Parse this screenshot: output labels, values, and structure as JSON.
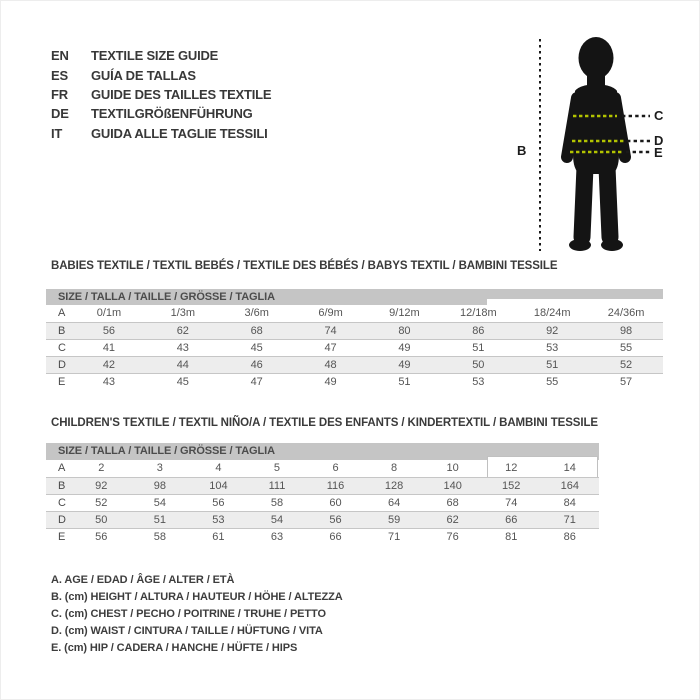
{
  "languages": [
    {
      "code": "EN",
      "title": "TEXTILE SIZE GUIDE"
    },
    {
      "code": "ES",
      "title": "GUÍA DE TALLAS"
    },
    {
      "code": "FR",
      "title": "GUIDE DES TAILLES TEXTILE"
    },
    {
      "code": "DE",
      "title": "TEXTILGRÖßENFÜHRUNG"
    },
    {
      "code": "IT",
      "title": "GUIDA ALLE TAGLIE TESSILI"
    }
  ],
  "figure": {
    "labels": {
      "height": "B",
      "chest": "C",
      "waist": "D",
      "hip": "E"
    }
  },
  "babies": {
    "title": "BABIES TEXTILE / TEXTIL BEBÉS / TEXTILE DES BÉBÉS / BABYS TEXTIL  / BAMBINI TESSILE",
    "size_header": "SIZE / TALLA / TAILLE / GRÖSSE / TAGLIA",
    "rows": [
      {
        "label": "A",
        "values": [
          "0/1m",
          "1/3m",
          "3/6m",
          "6/9m",
          "9/12m",
          "12/18m",
          "18/24m",
          "24/36m"
        ]
      },
      {
        "label": "B",
        "values": [
          "56",
          "62",
          "68",
          "74",
          "80",
          "86",
          "92",
          "98"
        ]
      },
      {
        "label": "C",
        "values": [
          "41",
          "43",
          "45",
          "47",
          "49",
          "51",
          "53",
          "55"
        ]
      },
      {
        "label": "D",
        "values": [
          "42",
          "44",
          "46",
          "48",
          "49",
          "50",
          "51",
          "52"
        ]
      },
      {
        "label": "E",
        "values": [
          "43",
          "45",
          "47",
          "49",
          "51",
          "53",
          "55",
          "57"
        ]
      }
    ]
  },
  "children": {
    "title": "CHILDREN'S TEXTILE / TEXTIL NIÑO/A / TEXTILE DES ENFANTS / KINDERTEXTIL / BAMBINI TESSILE",
    "size_header": "SIZE / TALLA / TAILLE / GRÖSSE / TAGLIA",
    "rows": [
      {
        "label": "A",
        "values": [
          "2",
          "3",
          "4",
          "5",
          "6",
          "8",
          "10",
          "12",
          "14"
        ]
      },
      {
        "label": "B",
        "values": [
          "92",
          "98",
          "104",
          "111",
          "116",
          "128",
          "140",
          "152",
          "164"
        ]
      },
      {
        "label": "C",
        "values": [
          "52",
          "54",
          "56",
          "58",
          "60",
          "64",
          "68",
          "74",
          "84"
        ]
      },
      {
        "label": "D",
        "values": [
          "50",
          "51",
          "53",
          "54",
          "56",
          "59",
          "62",
          "66",
          "71"
        ]
      },
      {
        "label": "E",
        "values": [
          "56",
          "58",
          "61",
          "63",
          "66",
          "71",
          "76",
          "81",
          "86"
        ]
      }
    ]
  },
  "legend": {
    "items": [
      "A. AGE / EDAD / ÂGE / ALTER / ETÀ",
      "B. (cm) HEIGHT / ALTURA / HAUTEUR / HÖHE / ALTEZZA",
      "C. (cm) CHEST / PECHO / POITRINE / TRUHE / PETTO",
      "D. (cm) WAIST / CINTURA / TAILLE / HÜFTUNG / VITA",
      "E. (cm) HIP / CADERA / HANCHE / HÜFTE / HIPS"
    ]
  },
  "colors": {
    "table_header_bar": "#c5c5c5",
    "table_alt_row": "#ededed",
    "measure_dash_green": "#b2c300",
    "measure_dash_black": "#191919",
    "silhouette": "#141414"
  }
}
